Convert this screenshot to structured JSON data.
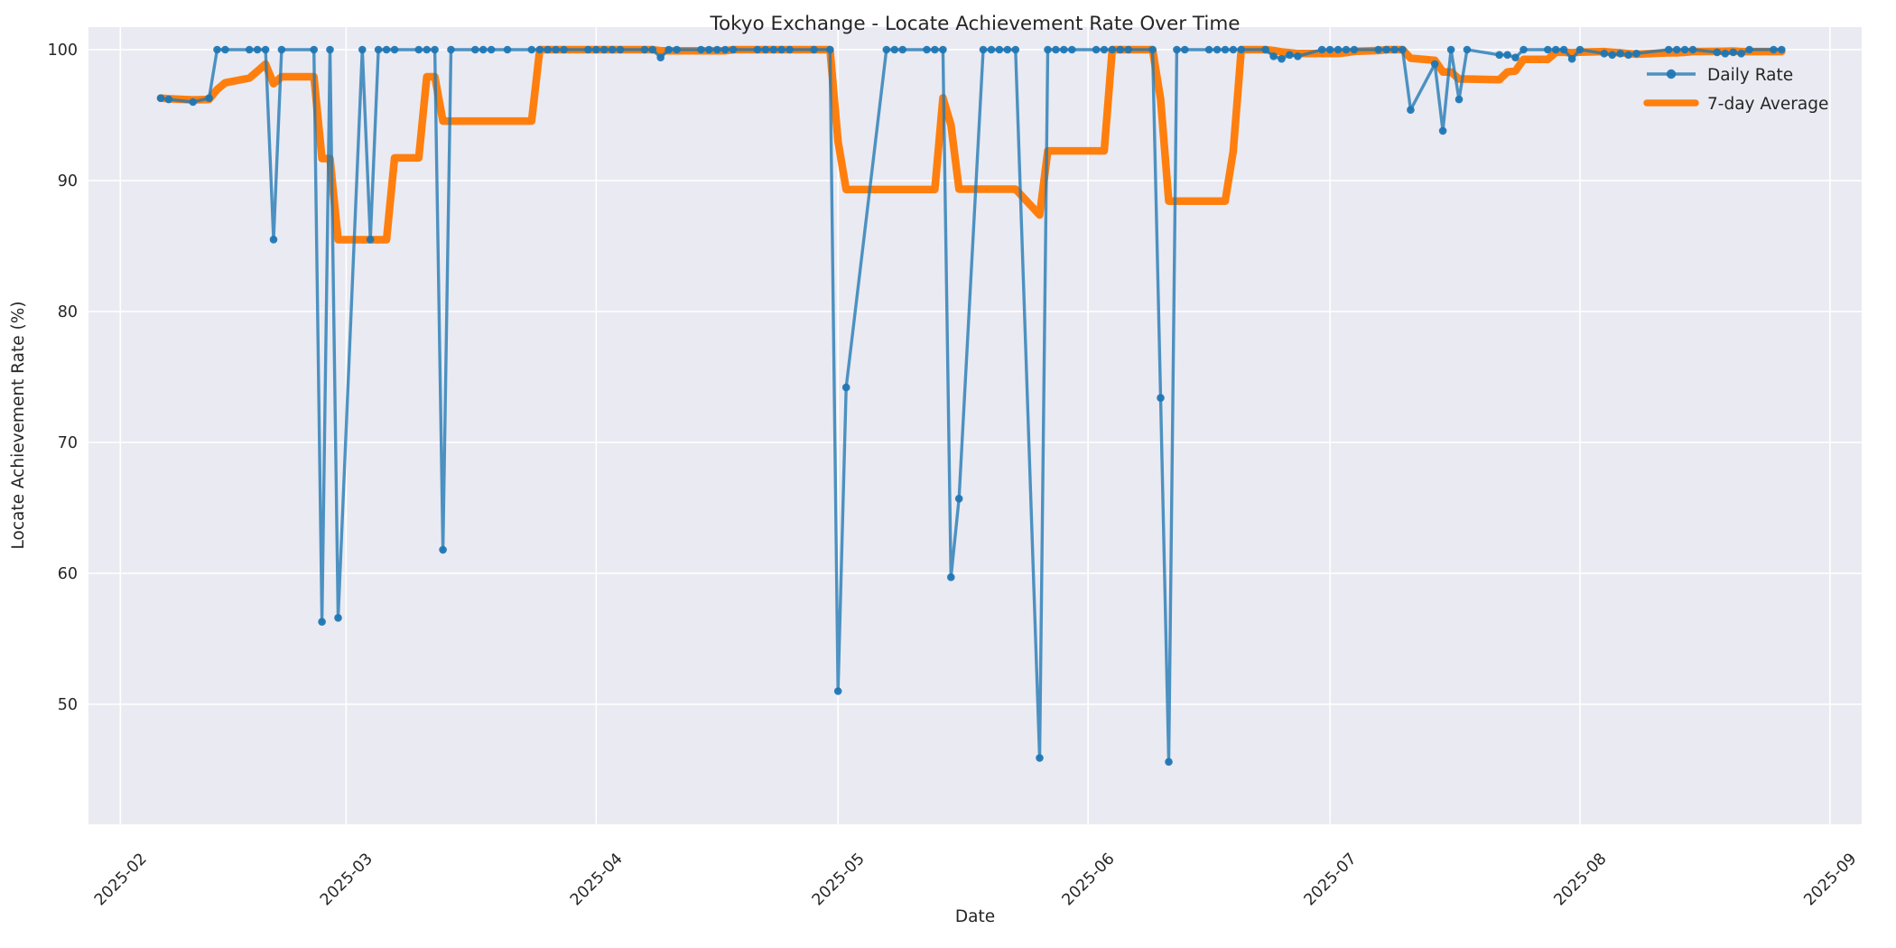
{
  "title": "Tokyo Exchange - Locate Achievement Rate Over Time",
  "axes": {
    "xlabel": "Date",
    "ylabel": "Locate Achievement Rate (%)",
    "yticks": [
      100,
      90,
      80,
      70,
      60,
      50
    ],
    "xticks": [
      {
        "label": "2025-02",
        "date": "2025-02-01"
      },
      {
        "label": "2025-03",
        "date": "2025-03-01"
      },
      {
        "label": "2025-04",
        "date": "2025-04-01"
      },
      {
        "label": "2025-05",
        "date": "2025-05-01"
      },
      {
        "label": "2025-06",
        "date": "2025-06-01"
      },
      {
        "label": "2025-07",
        "date": "2025-07-01"
      },
      {
        "label": "2025-08",
        "date": "2025-08-01"
      },
      {
        "label": "2025-09",
        "date": "2025-09-01"
      }
    ]
  },
  "legend": {
    "position": "upper right",
    "items": [
      {
        "label": "Daily Rate",
        "color": "#1f77b4"
      },
      {
        "label": "7-day Average",
        "color": "#ff7f0e"
      }
    ]
  },
  "style": {
    "figure_bg": "#ffffff",
    "axes_bg": "#eaeaf2",
    "grid_color": "#ffffff",
    "text_color": "#262626",
    "daily_line_color": "rgba(31,119,180,0.78)",
    "daily_marker_color": "rgba(31,119,180,0.95)",
    "avg_line_color": "#ff7f0e"
  },
  "chart_data": {
    "type": "line",
    "title": "Tokyo Exchange - Locate Achievement Rate Over Time",
    "xlabel": "Date",
    "ylabel": "Locate Achievement Rate (%)",
    "x_range": [
      "2025-02-06",
      "2025-08-26"
    ],
    "ylim": [
      40.8,
      101.8
    ],
    "grid": true,
    "note": "x axis is calendar dates; points exist only on Tokyo trading days (weekdays excluding Japanese holidays). 7-day Average is the rolling mean of the last 7 trading-day values.",
    "series": [
      {
        "name": "Daily Rate",
        "color": "#1f77b4",
        "marker": "circle",
        "points": [
          [
            "2025-02-06",
            96.3
          ],
          [
            "2025-02-07",
            96.2
          ],
          [
            "2025-02-10",
            96.0
          ],
          [
            "2025-02-12",
            96.3
          ],
          [
            "2025-02-13",
            100
          ],
          [
            "2025-02-14",
            100
          ],
          [
            "2025-02-17",
            100
          ],
          [
            "2025-02-18",
            100
          ],
          [
            "2025-02-19",
            100
          ],
          [
            "2025-02-20",
            85.5
          ],
          [
            "2025-02-21",
            100
          ],
          [
            "2025-02-25",
            100
          ],
          [
            "2025-02-26",
            56.3
          ],
          [
            "2025-02-27",
            100
          ],
          [
            "2025-02-28",
            56.6
          ],
          [
            "2025-03-03",
            100
          ],
          [
            "2025-03-04",
            85.5
          ],
          [
            "2025-03-05",
            100
          ],
          [
            "2025-03-06",
            100
          ],
          [
            "2025-03-07",
            100
          ],
          [
            "2025-03-10",
            100
          ],
          [
            "2025-03-11",
            100
          ],
          [
            "2025-03-12",
            100
          ],
          [
            "2025-03-13",
            61.8
          ],
          [
            "2025-03-14",
            100
          ],
          [
            "2025-03-17",
            100
          ],
          [
            "2025-03-18",
            100
          ],
          [
            "2025-03-19",
            100
          ],
          [
            "2025-03-21",
            100
          ],
          [
            "2025-03-24",
            100
          ],
          [
            "2025-03-25",
            100
          ],
          [
            "2025-03-26",
            100
          ],
          [
            "2025-03-27",
            100
          ],
          [
            "2025-03-28",
            100
          ],
          [
            "2025-03-31",
            100
          ],
          [
            "2025-04-01",
            100
          ],
          [
            "2025-04-02",
            100
          ],
          [
            "2025-04-03",
            100
          ],
          [
            "2025-04-04",
            100
          ],
          [
            "2025-04-07",
            100
          ],
          [
            "2025-04-08",
            100
          ],
          [
            "2025-04-09",
            99.4
          ],
          [
            "2025-04-10",
            100
          ],
          [
            "2025-04-11",
            100
          ],
          [
            "2025-04-14",
            100
          ],
          [
            "2025-04-15",
            100
          ],
          [
            "2025-04-16",
            100
          ],
          [
            "2025-04-17",
            100
          ],
          [
            "2025-04-18",
            100
          ],
          [
            "2025-04-21",
            100
          ],
          [
            "2025-04-22",
            100
          ],
          [
            "2025-04-23",
            100
          ],
          [
            "2025-04-24",
            100
          ],
          [
            "2025-04-25",
            100
          ],
          [
            "2025-04-28",
            100
          ],
          [
            "2025-04-30",
            100
          ],
          [
            "2025-05-01",
            51.0
          ],
          [
            "2025-05-02",
            74.2
          ],
          [
            "2025-05-07",
            100
          ],
          [
            "2025-05-08",
            100
          ],
          [
            "2025-05-09",
            100
          ],
          [
            "2025-05-12",
            100
          ],
          [
            "2025-05-13",
            100
          ],
          [
            "2025-05-14",
            100
          ],
          [
            "2025-05-15",
            59.7
          ],
          [
            "2025-05-16",
            65.7
          ],
          [
            "2025-05-19",
            100
          ],
          [
            "2025-05-20",
            100
          ],
          [
            "2025-05-21",
            100
          ],
          [
            "2025-05-22",
            100
          ],
          [
            "2025-05-23",
            100
          ],
          [
            "2025-05-26",
            45.9
          ],
          [
            "2025-05-27",
            100
          ],
          [
            "2025-05-28",
            100
          ],
          [
            "2025-05-29",
            100
          ],
          [
            "2025-05-30",
            100
          ],
          [
            "2025-06-02",
            100
          ],
          [
            "2025-06-03",
            100
          ],
          [
            "2025-06-04",
            100
          ],
          [
            "2025-06-05",
            100
          ],
          [
            "2025-06-06",
            100
          ],
          [
            "2025-06-09",
            100
          ],
          [
            "2025-06-10",
            73.4
          ],
          [
            "2025-06-11",
            45.6
          ],
          [
            "2025-06-12",
            100
          ],
          [
            "2025-06-13",
            100
          ],
          [
            "2025-06-16",
            100
          ],
          [
            "2025-06-17",
            100
          ],
          [
            "2025-06-18",
            100
          ],
          [
            "2025-06-19",
            100
          ],
          [
            "2025-06-20",
            100
          ],
          [
            "2025-06-23",
            100
          ],
          [
            "2025-06-24",
            99.5
          ],
          [
            "2025-06-25",
            99.3
          ],
          [
            "2025-06-26",
            99.6
          ],
          [
            "2025-06-27",
            99.5
          ],
          [
            "2025-06-30",
            100
          ],
          [
            "2025-07-01",
            100
          ],
          [
            "2025-07-02",
            100
          ],
          [
            "2025-07-03",
            100
          ],
          [
            "2025-07-04",
            100
          ],
          [
            "2025-07-07",
            100
          ],
          [
            "2025-07-08",
            100
          ],
          [
            "2025-07-09",
            100
          ],
          [
            "2025-07-10",
            100
          ],
          [
            "2025-07-11",
            95.4
          ],
          [
            "2025-07-14",
            98.9
          ],
          [
            "2025-07-15",
            93.8
          ],
          [
            "2025-07-16",
            100
          ],
          [
            "2025-07-17",
            96.2
          ],
          [
            "2025-07-18",
            100
          ],
          [
            "2025-07-22",
            99.6
          ],
          [
            "2025-07-23",
            99.6
          ],
          [
            "2025-07-24",
            99.4
          ],
          [
            "2025-07-25",
            100
          ],
          [
            "2025-07-28",
            100
          ],
          [
            "2025-07-29",
            100
          ],
          [
            "2025-07-30",
            100
          ],
          [
            "2025-07-31",
            99.3
          ],
          [
            "2025-08-01",
            100
          ],
          [
            "2025-08-04",
            99.7
          ],
          [
            "2025-08-05",
            99.6
          ],
          [
            "2025-08-06",
            99.7
          ],
          [
            "2025-08-07",
            99.6
          ],
          [
            "2025-08-08",
            99.7
          ],
          [
            "2025-08-12",
            100
          ],
          [
            "2025-08-13",
            100
          ],
          [
            "2025-08-14",
            100
          ],
          [
            "2025-08-15",
            100
          ],
          [
            "2025-08-18",
            99.8
          ],
          [
            "2025-08-19",
            99.7
          ],
          [
            "2025-08-20",
            99.8
          ],
          [
            "2025-08-21",
            99.7
          ],
          [
            "2025-08-22",
            100
          ],
          [
            "2025-08-25",
            100
          ],
          [
            "2025-08-26",
            100
          ]
        ]
      },
      {
        "name": "7-day Average",
        "color": "#ff7f0e",
        "marker": "none",
        "derived_from": "Daily Rate",
        "method": "rolling_mean_window_7_min_periods_1"
      }
    ]
  }
}
